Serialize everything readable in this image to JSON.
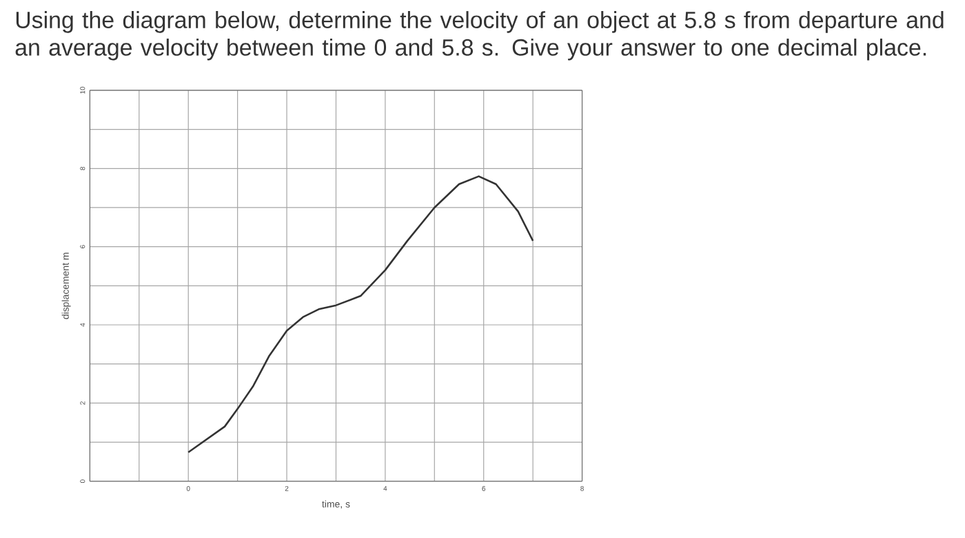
{
  "chart_data": {
    "type": "line",
    "title": "Using the diagram below, determine the velocity of an object at 5.8 s from departure and an average velocity between time 0 and 5.8 s. Give your answer to one decimal place.",
    "xlabel": "time, s",
    "ylabel": "displacement m",
    "xlim": [
      -2,
      8
    ],
    "ylim": [
      0,
      10
    ],
    "xticks": [
      {
        "value": -2,
        "label": null
      },
      {
        "value": -1,
        "label": null
      },
      0,
      {
        "value": 1,
        "label": null
      },
      2,
      {
        "value": 3,
        "label": null
      },
      4,
      {
        "value": 5,
        "label": null
      },
      6,
      {
        "value": 7,
        "label": null
      },
      8
    ],
    "yticks": [
      0,
      {
        "value": 1,
        "label": null
      },
      2,
      {
        "value": 3,
        "label": null
      },
      4,
      {
        "value": 5,
        "label": null
      },
      6,
      {
        "value": 7,
        "label": null
      },
      8,
      {
        "value": 9,
        "label": null
      },
      10
    ],
    "grid": true,
    "marker": "none",
    "line_style": "solid",
    "series": [
      {
        "color": "#333333",
        "x": [
          0,
          0.74,
          1,
          1.32,
          1.64,
          2,
          2.33,
          2.65,
          3,
          3.5,
          4,
          4.45,
          5,
          5.5,
          5.9,
          6.25,
          6.7,
          7
        ],
        "values": [
          0.74,
          1.4,
          1.85,
          2.44,
          3.2,
          3.85,
          4.2,
          4.4,
          4.5,
          4.74,
          5.4,
          6.15,
          7.0,
          7.6,
          7.8,
          7.6,
          6.9,
          6.15
        ]
      }
    ]
  }
}
